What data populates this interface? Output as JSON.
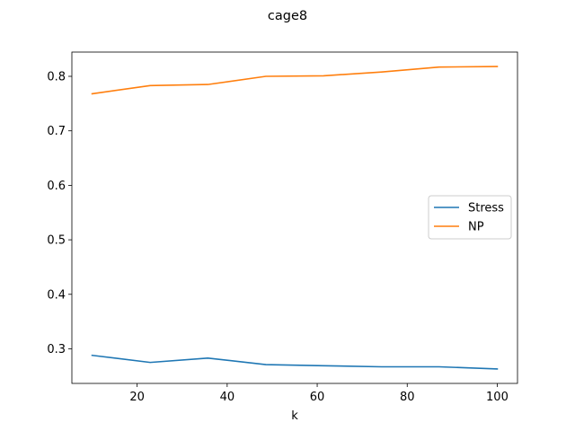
{
  "chart_data": {
    "type": "line",
    "title": "cage8",
    "xlabel": "k",
    "ylabel": "",
    "xlim": [
      5.5,
      104.5
    ],
    "ylim": [
      0.2365,
      0.8445
    ],
    "xticks": [
      20,
      40,
      60,
      80,
      100
    ],
    "yticks": [
      0.3,
      0.4,
      0.5,
      0.6,
      0.7,
      0.8
    ],
    "x": [
      10,
      22.9,
      35.7,
      48.6,
      61.4,
      74.3,
      87.1,
      100
    ],
    "series": [
      {
        "name": "Stress",
        "color": "#1f77b4",
        "values": [
          0.288,
          0.275,
          0.283,
          0.271,
          0.269,
          0.267,
          0.267,
          0.263
        ]
      },
      {
        "name": "NP",
        "color": "#ff7f0e",
        "values": [
          0.768,
          0.783,
          0.785,
          0.8,
          0.801,
          0.808,
          0.817,
          0.818
        ]
      }
    ],
    "legend": "center-right",
    "grid": false
  }
}
